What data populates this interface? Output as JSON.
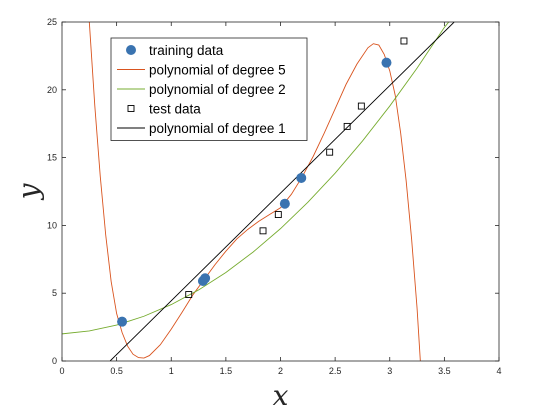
{
  "chart_data": {
    "type": "scatter",
    "title": "",
    "xlabel": "x",
    "ylabel": "y",
    "xlim": [
      0,
      4
    ],
    "ylim": [
      0,
      25
    ],
    "xticks": [
      "0",
      "0.5",
      "1",
      "1.5",
      "2",
      "2.5",
      "3",
      "3.5",
      "4"
    ],
    "yticks": [
      "0",
      "5",
      "10",
      "15",
      "20",
      "25"
    ],
    "grid": false,
    "legend_position": "top-left",
    "series": [
      {
        "name": "training data",
        "kind": "points",
        "marker": "filled-circle",
        "color": "#3a73b0",
        "points": [
          [
            0.55,
            2.9
          ],
          [
            1.29,
            5.9
          ],
          [
            1.31,
            6.1
          ],
          [
            2.04,
            11.6
          ],
          [
            2.19,
            13.5
          ],
          [
            2.97,
            22.0
          ]
        ]
      },
      {
        "name": "polynomial of degree 5",
        "kind": "curve",
        "color": "#d9541f",
        "points": [
          [
            0.25,
            25.0
          ],
          [
            0.3,
            18.84
          ],
          [
            0.35,
            13.63
          ],
          [
            0.4,
            9.3
          ],
          [
            0.45,
            5.86
          ],
          [
            0.5,
            3.5
          ],
          [
            0.55,
            2.1
          ],
          [
            0.6,
            1.1
          ],
          [
            0.65,
            0.5
          ],
          [
            0.7,
            0.25
          ],
          [
            0.75,
            0.22
          ],
          [
            0.8,
            0.4
          ],
          [
            0.9,
            1.2
          ],
          [
            1.0,
            2.35
          ],
          [
            1.1,
            3.6
          ],
          [
            1.2,
            4.9
          ],
          [
            1.3,
            6.0
          ],
          [
            1.4,
            7.1
          ],
          [
            1.5,
            8.1
          ],
          [
            1.6,
            9.0
          ],
          [
            1.7,
            9.7
          ],
          [
            1.8,
            10.3
          ],
          [
            1.9,
            10.8
          ],
          [
            2.0,
            11.3
          ],
          [
            2.1,
            12.3
          ],
          [
            2.2,
            13.6
          ],
          [
            2.3,
            15.1
          ],
          [
            2.4,
            16.8
          ],
          [
            2.5,
            18.6
          ],
          [
            2.6,
            20.4
          ],
          [
            2.7,
            21.9
          ],
          [
            2.8,
            23.1
          ],
          [
            2.85,
            23.4
          ],
          [
            2.9,
            23.3
          ],
          [
            2.95,
            22.6
          ],
          [
            3.0,
            21.4
          ],
          [
            3.05,
            19.6
          ],
          [
            3.1,
            16.8
          ],
          [
            3.15,
            13.3
          ],
          [
            3.2,
            9.0
          ],
          [
            3.25,
            3.9
          ],
          [
            3.28,
            0.0
          ]
        ]
      },
      {
        "name": "polynomial of degree 2",
        "kind": "curve",
        "color": "#77ac30",
        "points": [
          [
            0.0,
            2.0
          ],
          [
            0.25,
            2.22
          ],
          [
            0.5,
            2.65
          ],
          [
            0.75,
            3.3
          ],
          [
            1.0,
            4.16
          ],
          [
            1.25,
            5.24
          ],
          [
            1.5,
            6.53
          ],
          [
            1.75,
            8.04
          ],
          [
            2.0,
            9.76
          ],
          [
            2.25,
            11.7
          ],
          [
            2.5,
            13.85
          ],
          [
            2.75,
            16.22
          ],
          [
            3.0,
            18.8
          ],
          [
            3.25,
            21.6
          ],
          [
            3.5,
            24.6
          ],
          [
            3.54,
            25.0
          ]
        ]
      },
      {
        "name": "test data",
        "kind": "points",
        "marker": "open-square",
        "color": "#000000",
        "points": [
          [
            1.16,
            4.9
          ],
          [
            1.84,
            9.6
          ],
          [
            1.98,
            10.8
          ],
          [
            2.45,
            15.4
          ],
          [
            2.61,
            17.3
          ],
          [
            2.74,
            18.8
          ],
          [
            3.13,
            23.6
          ]
        ]
      },
      {
        "name": "polynomial of degree 1",
        "kind": "curve",
        "color": "#000000",
        "points": [
          [
            0.44,
            0.0
          ],
          [
            3.59,
            25.0
          ]
        ]
      }
    ]
  }
}
